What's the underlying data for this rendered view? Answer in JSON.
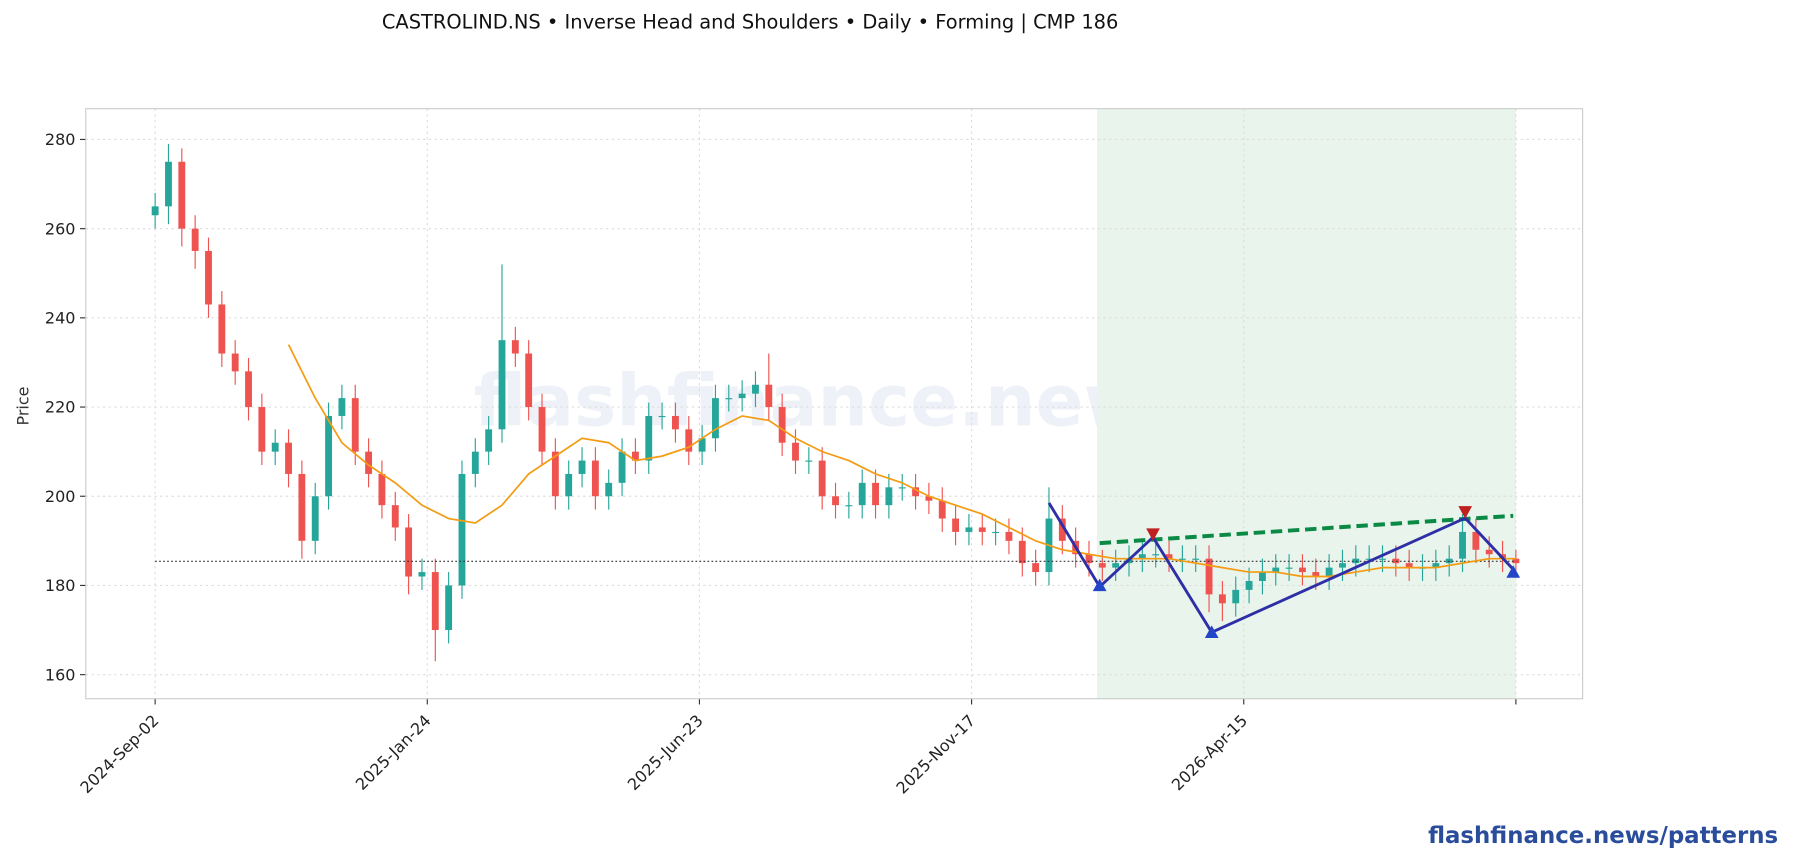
{
  "chart_data": {
    "type": "candlestick",
    "title": "CASTROLIND.NS  •  Inverse Head and Shoulders  •  Daily  •  Forming  |  CMP 186",
    "ylabel": "Price",
    "watermark": "flashfinance.news",
    "footer": "flashfinance.news/patterns",
    "xlim": [
      -26,
      535
    ],
    "ylim": [
      154.6,
      286.9
    ],
    "xticks": [
      {
        "value": 0,
        "label": "2024-Sep-02"
      },
      {
        "value": 102,
        "label": "2025-Jan-24"
      },
      {
        "value": 204,
        "label": "2025-Jun-23"
      },
      {
        "value": 306,
        "label": "2025-Nov-17"
      },
      {
        "value": 408,
        "label": "2026-Apr-15"
      },
      510
    ],
    "yticks": [
      160,
      180,
      200,
      220,
      240,
      260,
      280
    ],
    "grid": true,
    "up_color": "#26a69a",
    "down_color": "#ef5350",
    "x": [
      0,
      5,
      10,
      15,
      20,
      25,
      30,
      35,
      40,
      45,
      50,
      55,
      60,
      65,
      70,
      75,
      80,
      85,
      90,
      95,
      100,
      105,
      110,
      115,
      120,
      125,
      130,
      135,
      140,
      145,
      150,
      155,
      160,
      165,
      170,
      175,
      180,
      185,
      190,
      195,
      200,
      205,
      210,
      215,
      220,
      225,
      230,
      235,
      240,
      245,
      250,
      255,
      260,
      265,
      270,
      275,
      280,
      285,
      290,
      295,
      300,
      305,
      310,
      315,
      320,
      325,
      330,
      335,
      340,
      345,
      350,
      355,
      360,
      365,
      370,
      375,
      380,
      385,
      390,
      395,
      400,
      405,
      410,
      415,
      420,
      425,
      430,
      435,
      440,
      445,
      450,
      455,
      460,
      465,
      470,
      475,
      480,
      485,
      490,
      495,
      500,
      505,
      510
    ],
    "open": [
      263,
      265,
      275,
      260,
      255,
      243,
      232,
      228,
      220,
      210,
      212,
      205,
      190,
      200,
      218,
      222,
      210,
      205,
      198,
      193,
      182,
      183,
      170,
      180,
      205,
      210,
      215,
      235,
      232,
      220,
      210,
      200,
      205,
      208,
      200,
      203,
      210,
      208,
      218,
      218,
      215,
      210,
      213,
      222,
      222,
      223,
      225,
      220,
      212,
      208,
      208,
      200,
      198,
      198,
      203,
      198,
      202,
      202,
      200,
      199,
      195,
      192,
      193,
      192,
      192,
      190,
      185,
      183,
      195,
      190,
      187,
      185,
      184,
      185,
      186,
      187,
      187,
      186,
      186,
      186,
      178,
      176,
      179,
      181,
      183,
      184,
      184,
      183,
      182,
      184,
      185,
      186,
      186,
      186,
      185,
      184,
      184,
      185,
      186,
      192,
      188,
      187,
      186
    ],
    "high": [
      268,
      279,
      278,
      263,
      258,
      246,
      235,
      231,
      223,
      215,
      215,
      208,
      203,
      221,
      225,
      225,
      213,
      208,
      201,
      196,
      186,
      186,
      183,
      208,
      213,
      218,
      252,
      238,
      235,
      223,
      213,
      208,
      211,
      211,
      206,
      213,
      213,
      221,
      221,
      221,
      218,
      216,
      225,
      225,
      226,
      228,
      232,
      223,
      215,
      211,
      211,
      203,
      201,
      206,
      206,
      205,
      205,
      205,
      203,
      202,
      198,
      196,
      196,
      195,
      195,
      193,
      188,
      202,
      198,
      193,
      190,
      188,
      188,
      189,
      190,
      190,
      190,
      189,
      189,
      189,
      181,
      182,
      184,
      186,
      187,
      187,
      187,
      186,
      187,
      188,
      189,
      189,
      189,
      189,
      188,
      187,
      188,
      189,
      196,
      195,
      191,
      190,
      188
    ],
    "low": [
      260,
      261,
      256,
      251,
      240,
      229,
      225,
      217,
      207,
      207,
      202,
      186,
      187,
      197,
      215,
      207,
      202,
      195,
      190,
      178,
      179,
      163,
      167,
      177,
      202,
      207,
      212,
      229,
      217,
      207,
      197,
      197,
      202,
      197,
      197,
      200,
      205,
      205,
      215,
      212,
      207,
      207,
      210,
      219,
      219,
      220,
      217,
      209,
      205,
      205,
      197,
      195,
      195,
      195,
      195,
      195,
      199,
      197,
      196,
      192,
      189,
      189,
      189,
      189,
      187,
      182,
      180,
      180,
      187,
      184,
      182,
      181,
      181,
      182,
      183,
      184,
      183,
      183,
      183,
      174,
      172,
      173,
      176,
      178,
      180,
      181,
      180,
      179,
      179,
      181,
      182,
      183,
      183,
      182,
      181,
      181,
      181,
      182,
      183,
      185,
      184,
      183,
      182
    ],
    "close": [
      265,
      275,
      260,
      255,
      243,
      232,
      228,
      220,
      210,
      212,
      205,
      190,
      200,
      218,
      222,
      210,
      205,
      198,
      193,
      182,
      183,
      170,
      180,
      205,
      210,
      215,
      235,
      232,
      220,
      210,
      200,
      205,
      208,
      200,
      203,
      210,
      208,
      218,
      218,
      215,
      210,
      213,
      222,
      222,
      223,
      225,
      220,
      212,
      208,
      208,
      200,
      198,
      198,
      203,
      198,
      202,
      202,
      200,
      199,
      195,
      192,
      193,
      192,
      192,
      190,
      185,
      183,
      195,
      190,
      187,
      185,
      184,
      185,
      186,
      187,
      187,
      186,
      186,
      186,
      178,
      176,
      179,
      181,
      183,
      184,
      184,
      183,
      182,
      184,
      185,
      186,
      186,
      186,
      185,
      184,
      184,
      185,
      186,
      192,
      188,
      187,
      186,
      185
    ],
    "moving_average": {
      "color": "#f39c12",
      "x": [
        50,
        60,
        70,
        80,
        90,
        100,
        110,
        120,
        130,
        140,
        150,
        160,
        170,
        180,
        190,
        200,
        210,
        220,
        230,
        240,
        250,
        260,
        270,
        280,
        290,
        300,
        310,
        320,
        330,
        340,
        350,
        360,
        370,
        380,
        390,
        400,
        410,
        420,
        430,
        440,
        450,
        460,
        470,
        480,
        490,
        500,
        510
      ],
      "values": [
        234,
        222,
        212,
        207,
        203,
        198,
        195,
        194,
        198,
        205,
        209,
        213,
        212,
        208,
        209,
        211,
        215,
        218,
        217,
        213,
        210,
        208,
        205,
        203,
        200,
        198,
        196,
        193,
        190,
        188,
        187,
        186,
        186,
        186,
        185,
        184,
        183,
        183,
        182,
        182,
        183,
        184,
        184,
        184,
        185,
        186,
        186
      ]
    },
    "pattern": {
      "color": "#2e2ea6",
      "x": [
        335,
        354,
        374,
        396,
        491,
        509
      ],
      "values": [
        198.5,
        179.7,
        190.8,
        169.5,
        195.1,
        183.6
      ]
    },
    "neckline": {
      "color": "#0a8a44",
      "x": [
        354,
        509
      ],
      "values": [
        189.5,
        195.6
      ]
    },
    "support": {
      "color": "#333333",
      "x": [
        0,
        510
      ],
      "value": 185.4
    },
    "troughs": {
      "color": "#2346c8",
      "x": [
        354,
        396,
        509
      ],
      "values": [
        180,
        169.5,
        183
      ]
    },
    "peaks": {
      "color": "#c0201f",
      "x": [
        374,
        491
      ],
      "values": [
        191.5,
        196.5
      ]
    },
    "pattern_region": {
      "color": "#e8f4ec",
      "x": [
        353,
        510
      ]
    }
  }
}
